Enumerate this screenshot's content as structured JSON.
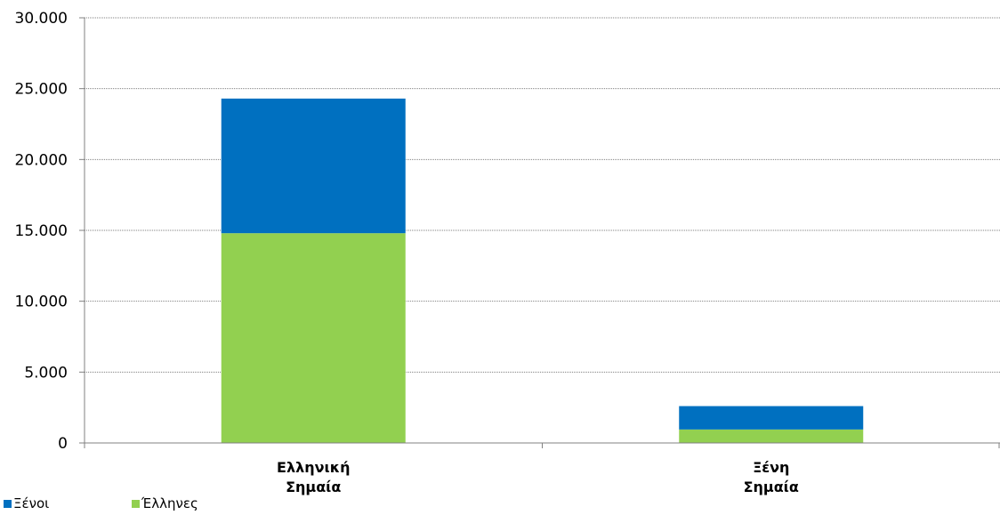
{
  "chart_data": {
    "type": "bar",
    "stacked": true,
    "categories": [
      [
        "Ελληνική",
        "Σημαία"
      ],
      [
        "Ξένη",
        "Σημαία"
      ]
    ],
    "series": [
      {
        "name": "Έλληνες",
        "color": "#92d050",
        "values": [
          14800,
          950
        ]
      },
      {
        "name": "Ξένοι",
        "color": "#0070c0",
        "values": [
          9500,
          1650
        ]
      }
    ],
    "ylim": [
      0,
      30000
    ],
    "yticks": [
      0,
      5000,
      10000,
      15000,
      20000,
      25000,
      30000
    ],
    "ytick_labels": [
      "0",
      "5.000",
      "10.000",
      "15.000",
      "20.000",
      "25.000",
      "30.000"
    ],
    "legend": {
      "placement": "bottom-left",
      "order": [
        "Ξένοι",
        "Έλληνες"
      ]
    },
    "grid": true
  }
}
